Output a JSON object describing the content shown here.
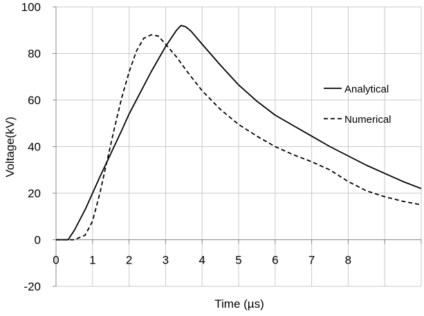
{
  "chart_data": {
    "type": "line",
    "xlabel": "Time (µs)",
    "ylabel": "Voltage(kV)",
    "xlim": [
      0,
      10
    ],
    "ylim": [
      -20,
      100
    ],
    "x_ticks": [
      "0",
      "1",
      "2",
      "3",
      "4",
      "5",
      "6",
      "7",
      "8"
    ],
    "y_ticks": [
      "-20",
      "0",
      "20",
      "40",
      "60",
      "80",
      "100"
    ],
    "grid": true,
    "legend_position": "right",
    "series": [
      {
        "name": "Analytical",
        "style": "solid",
        "x": [
          0,
          0.33,
          0.5,
          0.8,
          1.0,
          1.2,
          1.5,
          1.8,
          2.0,
          2.3,
          2.6,
          3.0,
          3.3,
          3.42,
          3.55,
          3.7,
          4.0,
          4.5,
          5.0,
          5.5,
          6.0,
          6.5,
          7.0,
          7.5,
          8.0,
          8.5,
          9.0,
          9.5,
          10.0
        ],
        "y": [
          0,
          0,
          4,
          13,
          20,
          27,
          37,
          47,
          54,
          63,
          72,
          83,
          90,
          92,
          91.5,
          89.5,
          84,
          75,
          66.5,
          59.5,
          53.5,
          49,
          44.5,
          40,
          36,
          32,
          28.5,
          25,
          22
        ]
      },
      {
        "name": "Numerical",
        "style": "dashed",
        "x": [
          0,
          0.5,
          0.8,
          1.0,
          1.2,
          1.4,
          1.6,
          1.8,
          2.0,
          2.2,
          2.4,
          2.6,
          2.8,
          3.0,
          3.3,
          3.6,
          4.0,
          4.5,
          5.0,
          5.5,
          6.0,
          6.5,
          7.0,
          7.5,
          8.0,
          8.5,
          9.0,
          9.5,
          10.0
        ],
        "y": [
          0,
          0,
          2,
          8,
          20,
          34,
          48,
          61,
          72,
          81,
          86.5,
          88,
          87.5,
          84,
          78.5,
          72,
          64,
          56,
          49.5,
          44.5,
          40,
          36.5,
          33.5,
          30,
          25,
          21,
          18.5,
          16.5,
          15
        ]
      }
    ]
  }
}
